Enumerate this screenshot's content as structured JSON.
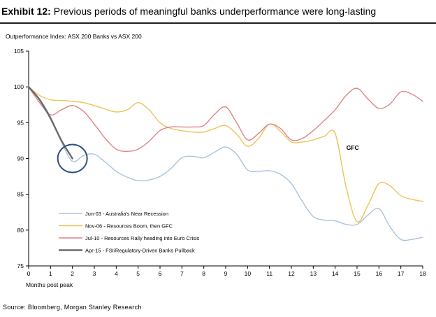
{
  "header": {
    "exhibit": "Exhibit 12:",
    "title": "Previous periods of meaningful banks underperformance were long-lasting"
  },
  "colors": {
    "jun03": "#a9c4de",
    "nov06": "#ecc457",
    "jul10": "#df8486",
    "apr15": "#6a6a6a",
    "circle": "#2e4f86",
    "axis": "#000000"
  },
  "chart_data": {
    "type": "line",
    "title": "Outperformance Index: ASX 200 Banks vs ASX 200",
    "xlabel": "Months post peak",
    "ylabel": "",
    "xlim": [
      0,
      18
    ],
    "ylim": [
      75,
      105
    ],
    "x_ticks": [
      0,
      1,
      2,
      3,
      4,
      5,
      6,
      7,
      8,
      9,
      10,
      11,
      12,
      13,
      14,
      15,
      16,
      17,
      18
    ],
    "y_ticks": [
      75,
      80,
      85,
      90,
      95,
      100,
      105
    ],
    "legend_position": "bottom-left",
    "series": [
      {
        "name": "Jun-03 - Australia's Near Recession",
        "key": "jun03",
        "points": [
          [
            0,
            100
          ],
          [
            0.5,
            98.3
          ],
          [
            1,
            95.8
          ],
          [
            1.5,
            92.3
          ],
          [
            2,
            89.6
          ],
          [
            2.5,
            90.4
          ],
          [
            3,
            90.6
          ],
          [
            3.5,
            89.5
          ],
          [
            4,
            88.2
          ],
          [
            4.5,
            87.4
          ],
          [
            5,
            86.9
          ],
          [
            5.5,
            87.0
          ],
          [
            6,
            87.5
          ],
          [
            6.5,
            88.6
          ],
          [
            7,
            90.1
          ],
          [
            7.5,
            90.3
          ],
          [
            8,
            90.1
          ],
          [
            8.5,
            90.9
          ],
          [
            9,
            91.6
          ],
          [
            9.5,
            90.6
          ],
          [
            10,
            88.4
          ],
          [
            10.5,
            88.2
          ],
          [
            11,
            88.3
          ],
          [
            11.5,
            87.8
          ],
          [
            12,
            86.5
          ],
          [
            12.5,
            84.0
          ],
          [
            13,
            81.9
          ],
          [
            13.5,
            81.4
          ],
          [
            14,
            81.3
          ],
          [
            14.5,
            80.8
          ],
          [
            15,
            80.8
          ],
          [
            15.5,
            82.1
          ],
          [
            16,
            83.0
          ],
          [
            16.5,
            80.5
          ],
          [
            17,
            78.7
          ],
          [
            17.5,
            78.7
          ],
          [
            18,
            79.0
          ]
        ]
      },
      {
        "name": "Nov-06 - Resources Boom, then GFC",
        "key": "nov06",
        "points": [
          [
            0,
            100
          ],
          [
            0.5,
            98.8
          ],
          [
            1,
            98.2
          ],
          [
            1.5,
            98.1
          ],
          [
            2,
            98.0
          ],
          [
            2.5,
            97.8
          ],
          [
            3,
            97.4
          ],
          [
            3.5,
            96.9
          ],
          [
            4,
            96.5
          ],
          [
            4.5,
            96.8
          ],
          [
            5,
            97.8
          ],
          [
            5.5,
            96.8
          ],
          [
            6,
            95.0
          ],
          [
            6.5,
            94.2
          ],
          [
            7,
            93.9
          ],
          [
            7.5,
            93.7
          ],
          [
            8,
            93.7
          ],
          [
            8.5,
            94.2
          ],
          [
            9,
            94.6
          ],
          [
            9.5,
            93.4
          ],
          [
            10,
            91.7
          ],
          [
            10.5,
            92.8
          ],
          [
            11,
            94.8
          ],
          [
            11.5,
            93.8
          ],
          [
            12,
            92.3
          ],
          [
            12.5,
            92.3
          ],
          [
            13,
            92.6
          ],
          [
            13.5,
            93.1
          ],
          [
            14,
            93.5
          ],
          [
            14.5,
            86.0
          ],
          [
            15,
            81.2
          ],
          [
            15.5,
            83.5
          ],
          [
            16,
            86.5
          ],
          [
            16.5,
            86.2
          ],
          [
            17,
            84.8
          ],
          [
            17.5,
            84.3
          ],
          [
            18,
            84.0
          ]
        ]
      },
      {
        "name": "Jul-10 - Resources Rally heading into Euro Crisis",
        "key": "jul10",
        "points": [
          [
            0,
            100
          ],
          [
            0.5,
            97.8
          ],
          [
            1,
            96.1
          ],
          [
            1.5,
            96.8
          ],
          [
            2,
            97.4
          ],
          [
            2.5,
            96.6
          ],
          [
            3,
            94.8
          ],
          [
            3.5,
            92.8
          ],
          [
            4,
            91.3
          ],
          [
            4.5,
            91.0
          ],
          [
            5,
            91.3
          ],
          [
            5.5,
            92.4
          ],
          [
            6,
            93.9
          ],
          [
            6.5,
            94.4
          ],
          [
            7,
            94.4
          ],
          [
            7.5,
            94.4
          ],
          [
            8,
            94.6
          ],
          [
            8.5,
            96.2
          ],
          [
            9,
            97.2
          ],
          [
            9.5,
            95.0
          ],
          [
            10,
            92.6
          ],
          [
            10.5,
            93.5
          ],
          [
            11,
            94.8
          ],
          [
            11.5,
            94.2
          ],
          [
            12,
            92.6
          ],
          [
            12.5,
            92.8
          ],
          [
            13,
            93.9
          ],
          [
            13.5,
            95.3
          ],
          [
            14,
            96.8
          ],
          [
            14.5,
            98.8
          ],
          [
            15,
            99.8
          ],
          [
            15.5,
            98.3
          ],
          [
            16,
            97.0
          ],
          [
            16.5,
            97.6
          ],
          [
            17,
            99.3
          ],
          [
            17.5,
            99.0
          ],
          [
            18,
            98.0
          ]
        ]
      },
      {
        "name": "Apr-15 - FSI/Regulatory-Driven Banks Pullback",
        "key": "apr15",
        "points": [
          [
            0,
            100
          ],
          [
            0.5,
            98.2
          ],
          [
            1,
            95.6
          ],
          [
            1.5,
            92.5
          ],
          [
            2,
            90.0
          ]
        ]
      }
    ],
    "annotations": [
      {
        "text": "GFC",
        "x": 14.8,
        "y": 91.2
      },
      {
        "shape": "circle",
        "x": 2.0,
        "y": 90.0
      }
    ]
  },
  "source": "Source: Bloomberg, Morgan Stanley Research"
}
